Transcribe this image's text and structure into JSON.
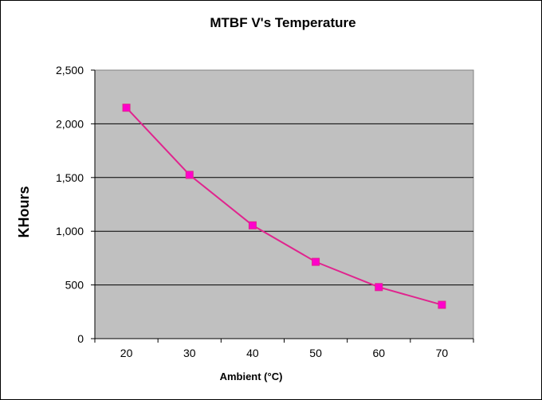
{
  "chart_data": {
    "type": "line",
    "title": "MTBF V's Temperature",
    "xlabel": "Ambient (°C)",
    "ylabel": "KHours",
    "categories": [
      "20",
      "30",
      "40",
      "50",
      "60",
      "70"
    ],
    "series": [
      {
        "values": [
          2150,
          1525,
          1055,
          715,
          480,
          315
        ],
        "color": "#e0248e",
        "marker_color": "#ff00cc"
      }
    ],
    "ylim": [
      0,
      2500
    ],
    "y_ticks": [
      0,
      500,
      1000,
      1500,
      2000,
      2500
    ],
    "y_tick_labels": [
      "0",
      "500",
      "1,000",
      "1,500",
      "2,000",
      "2,500"
    ],
    "grid": true,
    "legend": "none",
    "plot_background": "#c0c0c0"
  }
}
